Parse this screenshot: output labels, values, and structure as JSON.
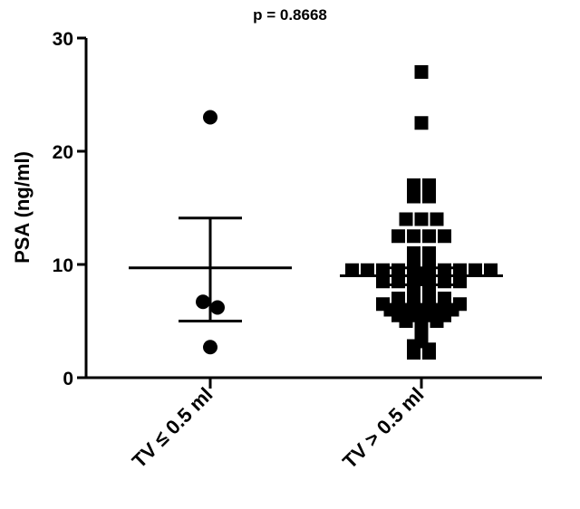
{
  "chart_data": {
    "type": "scatter",
    "title": "p = 0.8668",
    "xlabel": "",
    "ylabel": "PSA (ng/ml)",
    "ylim": [
      0,
      30
    ],
    "yticks": [
      0,
      10,
      20,
      30
    ],
    "grid": false,
    "categories": [
      "TV ≤ 0.5 ml",
      "TV > 0.5 ml"
    ],
    "series": [
      {
        "category": "TV ≤ 0.5 ml",
        "marker": "circle",
        "values": [
          23.0,
          6.7,
          6.2,
          2.7
        ],
        "mean": 9.7,
        "sem_upper": 14.1,
        "sem_lower": 5.0
      },
      {
        "category": "TV > 0.5 ml",
        "marker": "square",
        "values": [
          27.0,
          22.5,
          17.0,
          17.0,
          16.0,
          16.0,
          14.0,
          14.0,
          14.0,
          12.5,
          12.5,
          12.5,
          12.5,
          11.0,
          11.0,
          10.0,
          10.0,
          9.5,
          9.5,
          9.5,
          9.5,
          9.5,
          9.5,
          9.5,
          9.5,
          9.5,
          9.5,
          8.5,
          8.5,
          8.5,
          8.5,
          8.5,
          8.5,
          8.0,
          8.0,
          7.0,
          7.0,
          7.0,
          7.0,
          6.5,
          6.5,
          6.5,
          6.5,
          6.5,
          6.5,
          6.0,
          6.0,
          6.0,
          6.0,
          6.0,
          5.5,
          5.5,
          5.5,
          5.5,
          5.0,
          5.0,
          5.0,
          3.8,
          3.2,
          2.8,
          2.5,
          2.2,
          2.2
        ],
        "mean": 9.0,
        "sem_upper": 9.7,
        "sem_lower": 8.2
      }
    ]
  }
}
